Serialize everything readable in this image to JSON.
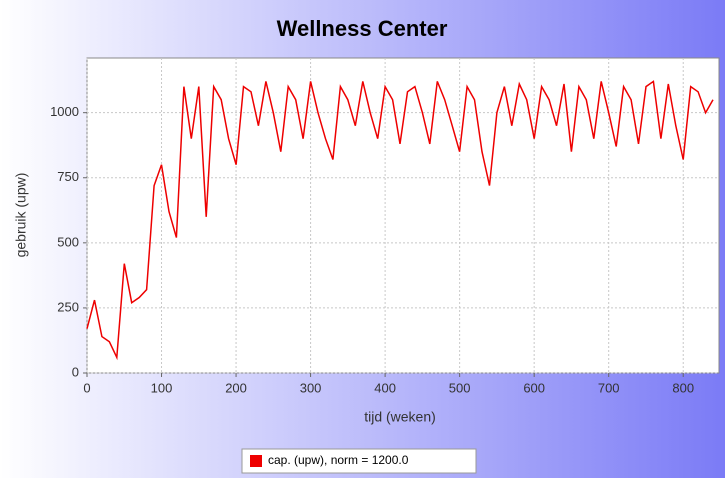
{
  "chart_data": {
    "type": "line",
    "title": "Wellness Center",
    "xlabel": "tijd (weken)",
    "ylabel": "gebruik (upw)",
    "x": [
      0,
      10,
      20,
      30,
      40,
      50,
      60,
      70,
      80,
      90,
      100,
      110,
      120,
      130,
      140,
      150,
      160,
      170,
      180,
      190,
      200,
      210,
      220,
      230,
      240,
      250,
      260,
      270,
      280,
      290,
      300,
      310,
      320,
      330,
      340,
      350,
      360,
      370,
      380,
      390,
      400,
      410,
      420,
      430,
      440,
      450,
      460,
      470,
      480,
      490,
      500,
      510,
      520,
      530,
      540,
      550,
      560,
      570,
      580,
      590,
      600,
      610,
      620,
      630,
      640,
      650,
      660,
      670,
      680,
      690,
      700,
      710,
      720,
      730,
      740,
      750,
      760,
      770,
      780,
      790,
      800,
      810,
      820,
      830,
      840
    ],
    "series": [
      {
        "name": "cap. (upw), norm = 1200.0",
        "color": "#ee0000",
        "values": [
          170,
          280,
          140,
          120,
          60,
          420,
          270,
          290,
          320,
          720,
          800,
          620,
          520,
          1100,
          900,
          1100,
          600,
          1100,
          1050,
          900,
          800,
          1100,
          1080,
          950,
          1120,
          1000,
          850,
          1100,
          1050,
          900,
          1120,
          1000,
          900,
          820,
          1100,
          1050,
          950,
          1120,
          1000,
          900,
          1100,
          1050,
          880,
          1080,
          1100,
          1000,
          880,
          1120,
          1050,
          950,
          850,
          1100,
          1050,
          850,
          720,
          1000,
          1100,
          950,
          1110,
          1050,
          900,
          1100,
          1050,
          950,
          1110,
          850,
          1100,
          1050,
          900,
          1120,
          1000,
          870,
          1100,
          1050,
          880,
          1100,
          1120,
          900,
          1110,
          950,
          820,
          1100,
          1080,
          1000,
          1050
        ]
      }
    ],
    "xlim": [
      0,
      848
    ],
    "xticks": [
      0,
      100,
      200,
      300,
      400,
      500,
      600,
      700,
      800
    ],
    "ylim": [
      0,
      1210
    ],
    "yticks": [
      0,
      250,
      500,
      750,
      1000
    ],
    "grid": true,
    "legend": "bottom"
  }
}
